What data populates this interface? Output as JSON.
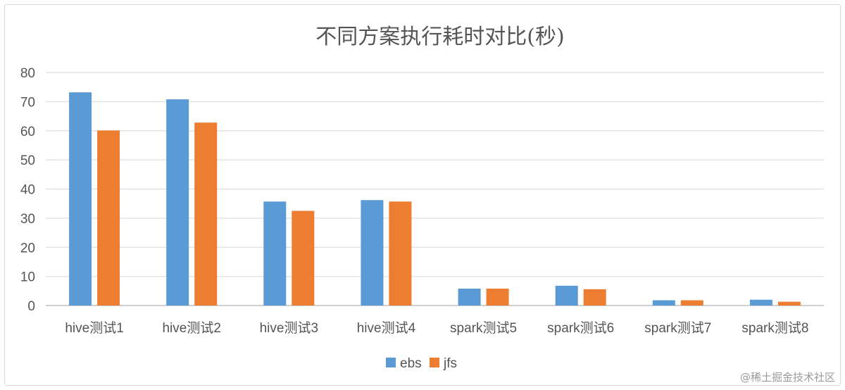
{
  "chart_data": {
    "type": "bar",
    "title": "不同方案执行耗时对比(秒)",
    "xlabel": "",
    "ylabel": "",
    "ylim": [
      0,
      80
    ],
    "yticks": [
      0,
      10,
      20,
      30,
      40,
      50,
      60,
      70,
      80
    ],
    "grid": true,
    "legend_position": "bottom",
    "categories": [
      "hive测试1",
      "hive测试2",
      "hive测试3",
      "hive测试4",
      "spark测试5",
      "spark测试6",
      "spark测试7",
      "spark测试8"
    ],
    "series": [
      {
        "name": "ebs",
        "color": "#5b9bd5",
        "values": [
          73.2,
          70.8,
          35.7,
          36.2,
          5.8,
          6.8,
          1.8,
          2.0
        ]
      },
      {
        "name": "jfs",
        "color": "#ed7d31",
        "values": [
          60.1,
          62.8,
          32.5,
          35.7,
          5.8,
          5.6,
          1.8,
          1.3
        ]
      }
    ]
  },
  "credit": "@稀土掘金技术社区"
}
